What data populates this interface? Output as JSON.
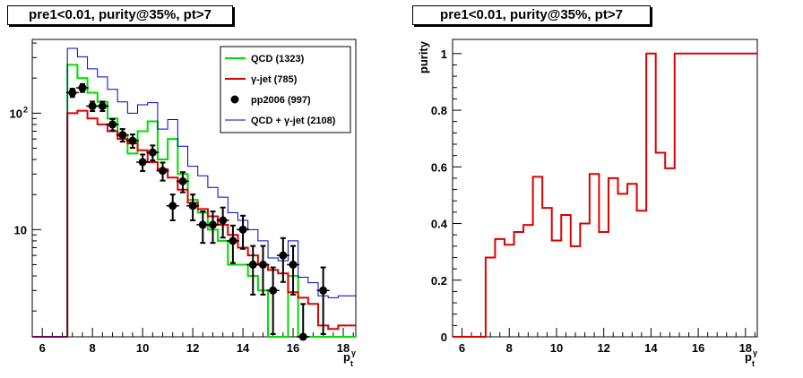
{
  "chart_data": [
    {
      "type": "step-histogram",
      "title": "pre1<0.01, purity@35%, pt>7",
      "xlabel": "p",
      "xlabel_sub": "t",
      "xlabel_sup": "γ",
      "ylabel": "",
      "yscale": "log",
      "xlim": [
        5.6,
        18.5
      ],
      "ylim": [
        1.2,
        430
      ],
      "x_ticks": [
        6,
        8,
        10,
        12,
        14,
        16,
        18
      ],
      "y_ticks": [
        {
          "value": 10,
          "label": "10"
        },
        {
          "value": 100,
          "label": "10",
          "sup": "2"
        }
      ],
      "legend_position": "top-right",
      "bin_edges": [
        7.0,
        7.4,
        7.8,
        8.2,
        8.6,
        9.0,
        9.4,
        9.8,
        10.2,
        10.6,
        11.0,
        11.4,
        11.8,
        12.2,
        12.6,
        13.0,
        13.4,
        13.8,
        14.2,
        14.6,
        15.0,
        15.4,
        15.8,
        16.2,
        16.6,
        17.0,
        17.4,
        17.8,
        18.2
      ],
      "underflow_level": 1.2,
      "series": [
        {
          "name": "QCD (1323)",
          "kind": "step",
          "color": "#00dd00",
          "values": [
            260,
            200,
            150,
            125,
            90,
            65,
            45,
            70,
            85,
            40,
            60,
            30,
            18,
            14,
            10,
            8,
            5,
            5,
            4,
            3,
            1.2,
            1.2,
            4,
            1.2,
            1.2,
            1.2,
            1.2,
            1.2
          ]
        },
        {
          "name": "γ-jet (785)",
          "kind": "step",
          "color": "#dd0000",
          "values": [
            100,
            105,
            90,
            80,
            70,
            60,
            55,
            48,
            38,
            33,
            28,
            22,
            17,
            15,
            13,
            11,
            9,
            7,
            6,
            5,
            4.5,
            4.2,
            2.9,
            2.6,
            2.3,
            1.5,
            1.4,
            1.5
          ]
        },
        {
          "name": "QCD + γ-jet (2108)",
          "kind": "step",
          "color": "#0000cc",
          "values": [
            360,
            305,
            240,
            205,
            160,
            125,
            100,
            118,
            123,
            73,
            88,
            52,
            35,
            29,
            23,
            19,
            14,
            12,
            10,
            8,
            5.7,
            5.4,
            8,
            3.9,
            3.5,
            2.7,
            2.6,
            2.7
          ]
        },
        {
          "name": "pp2006 (997)",
          "kind": "points",
          "color": "#000000",
          "x": [
            7.2,
            7.6,
            8.0,
            8.4,
            8.8,
            9.2,
            9.6,
            10.0,
            10.4,
            10.8,
            11.2,
            11.6,
            12.0,
            12.4,
            12.8,
            13.2,
            13.6,
            14.0,
            14.4,
            14.8,
            15.2,
            15.6,
            16.0,
            16.4,
            17.2
          ],
          "y": [
            150,
            165,
            115,
            115,
            80,
            65,
            58,
            38,
            46,
            32,
            16,
            26,
            16,
            11,
            11,
            12,
            8,
            10,
            5,
            5,
            3,
            6,
            5,
            1.2,
            3
          ]
        }
      ]
    },
    {
      "type": "step-histogram",
      "title": "pre1<0.01, purity@35%, pt>7",
      "xlabel": "p",
      "xlabel_sub": "t",
      "xlabel_sup": "γ",
      "ylabel": "purity",
      "yscale": "linear",
      "xlim": [
        5.6,
        18.5
      ],
      "ylim": [
        0,
        1.05
      ],
      "x_ticks": [
        6,
        8,
        10,
        12,
        14,
        16,
        18
      ],
      "y_ticks": [
        {
          "value": 0,
          "label": "0"
        },
        {
          "value": 0.2,
          "label": "0.2"
        },
        {
          "value": 0.4,
          "label": "0.4"
        },
        {
          "value": 0.6,
          "label": "0.6"
        },
        {
          "value": 0.8,
          "label": "0.8"
        },
        {
          "value": 1,
          "label": "1"
        }
      ],
      "bin_edges": [
        7.0,
        7.4,
        7.8,
        8.2,
        8.6,
        9.0,
        9.4,
        9.8,
        10.2,
        10.6,
        11.0,
        11.4,
        11.8,
        12.2,
        12.6,
        13.0,
        13.4,
        13.8,
        14.2,
        14.6,
        15.0,
        15.4,
        15.8,
        16.2,
        16.6,
        17.0,
        17.4,
        17.8,
        18.2,
        18.5
      ],
      "series": [
        {
          "name": "purity",
          "kind": "step",
          "color": "#dd0000",
          "values": [
            0.28,
            0.345,
            0.325,
            0.37,
            0.395,
            0.565,
            0.455,
            0.34,
            0.43,
            0.32,
            0.4,
            0.575,
            0.37,
            0.56,
            0.505,
            0.54,
            0.445,
            1.0,
            0.65,
            0.595,
            1.0,
            1.0,
            1.0,
            1.0,
            1.0,
            1.0,
            1.0,
            1.0,
            1.0
          ]
        }
      ]
    }
  ]
}
